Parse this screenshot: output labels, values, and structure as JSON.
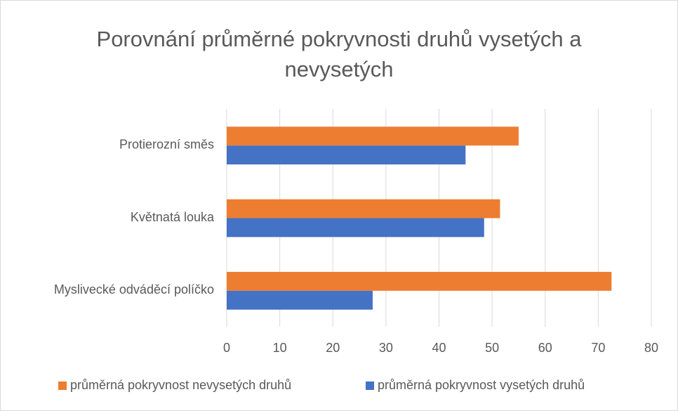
{
  "chart_data": {
    "type": "barh",
    "title": "Porovnání průměrné pokryvnosti druhů vysetých a nevysetých",
    "categories": [
      "Protierozní směs",
      "Květnatá louka",
      "Myslivecké odváděcí políčko"
    ],
    "series": [
      {
        "name": "průměrná pokryvnost nevysetých druhů",
        "color": "#ed7d31",
        "values": [
          55,
          51.5,
          72.5
        ]
      },
      {
        "name": "průměrná pokryvnost vysetých druhů",
        "color": "#4472c4",
        "values": [
          45,
          48.5,
          27.5
        ]
      }
    ],
    "xlim": [
      0,
      80
    ],
    "xticks": [
      0,
      10,
      20,
      30,
      40,
      50,
      60,
      70,
      80
    ],
    "grid": true,
    "legend": "bottom"
  }
}
